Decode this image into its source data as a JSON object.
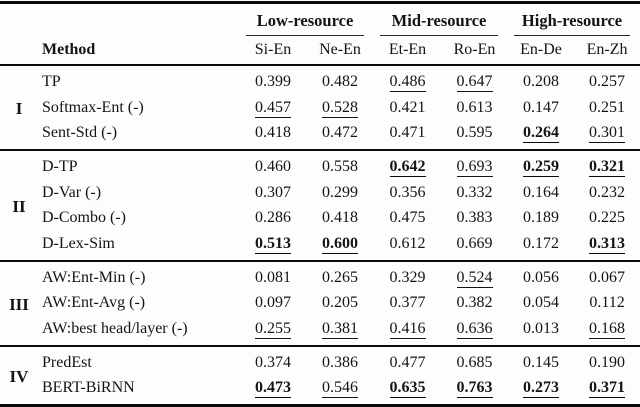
{
  "table": {
    "col_groups": [
      {
        "label": "Low-resource"
      },
      {
        "label": "Mid-resource"
      },
      {
        "label": "High-resource"
      }
    ],
    "method_header": "Method",
    "columns": [
      "Si-En",
      "Ne-En",
      "Et-En",
      "Ro-En",
      "En-De",
      "En-Zh"
    ],
    "groups": [
      {
        "id": "I",
        "rows": [
          {
            "method": "TP",
            "values": [
              "0.399",
              "0.482",
              "0.486",
              "0.647",
              "0.208",
              "0.257"
            ],
            "formats": [
              "plain",
              "plain",
              "u",
              "u",
              "plain",
              "plain"
            ]
          },
          {
            "method": "Softmax-Ent (-)",
            "values": [
              "0.457",
              "0.528",
              "0.421",
              "0.613",
              "0.147",
              "0.251"
            ],
            "formats": [
              "u",
              "u",
              "plain",
              "plain",
              "plain",
              "plain"
            ]
          },
          {
            "method": "Sent-Std (-)",
            "values": [
              "0.418",
              "0.472",
              "0.471",
              "0.595",
              "0.264",
              "0.301"
            ],
            "formats": [
              "plain",
              "plain",
              "plain",
              "plain",
              "bu",
              "u"
            ]
          }
        ]
      },
      {
        "id": "II",
        "rows": [
          {
            "method": "D-TP",
            "values": [
              "0.460",
              "0.558",
              "0.642",
              "0.693",
              "0.259",
              "0.321"
            ],
            "formats": [
              "plain",
              "plain",
              "bu",
              "u",
              "bu",
              "bu"
            ]
          },
          {
            "method": "D-Var (-)",
            "values": [
              "0.307",
              "0.299",
              "0.356",
              "0.332",
              "0.164",
              "0.232"
            ],
            "formats": [
              "plain",
              "plain",
              "plain",
              "plain",
              "plain",
              "plain"
            ]
          },
          {
            "method": "D-Combo (-)",
            "values": [
              "0.286",
              "0.418",
              "0.475",
              "0.383",
              "0.189",
              "0.225"
            ],
            "formats": [
              "plain",
              "plain",
              "plain",
              "plain",
              "plain",
              "plain"
            ]
          },
          {
            "method": "D-Lex-Sim",
            "values": [
              "0.513",
              "0.600",
              "0.612",
              "0.669",
              "0.172",
              "0.313"
            ],
            "formats": [
              "bu",
              "bu",
              "plain",
              "plain",
              "plain",
              "bu"
            ]
          }
        ]
      },
      {
        "id": "III",
        "rows": [
          {
            "method": "AW:Ent-Min (-)",
            "values": [
              "0.081",
              "0.265",
              "0.329",
              "0.524",
              "0.056",
              "0.067"
            ],
            "formats": [
              "plain",
              "plain",
              "plain",
              "u",
              "plain",
              "plain"
            ]
          },
          {
            "method": "AW:Ent-Avg (-)",
            "values": [
              "0.097",
              "0.205",
              "0.377",
              "0.382",
              "0.054",
              "0.112"
            ],
            "formats": [
              "plain",
              "plain",
              "plain",
              "plain",
              "plain",
              "plain"
            ]
          },
          {
            "method": "AW:best head/layer (-)",
            "values": [
              "0.255",
              "0.381",
              "0.416",
              "0.636",
              "0.013",
              "0.168"
            ],
            "formats": [
              "u",
              "u",
              "u",
              "u",
              "plain",
              "u"
            ]
          }
        ]
      },
      {
        "id": "IV",
        "rows": [
          {
            "method": "PredEst",
            "values": [
              "0.374",
              "0.386",
              "0.477",
              "0.685",
              "0.145",
              "0.190"
            ],
            "formats": [
              "plain",
              "plain",
              "plain",
              "plain",
              "plain",
              "plain"
            ]
          },
          {
            "method": "BERT-BiRNN",
            "values": [
              "0.473",
              "0.546",
              "0.635",
              "0.763",
              "0.273",
              "0.371"
            ],
            "formats": [
              "bu",
              "u",
              "bu",
              "bu",
              "bu",
              "bu"
            ]
          }
        ]
      }
    ]
  }
}
